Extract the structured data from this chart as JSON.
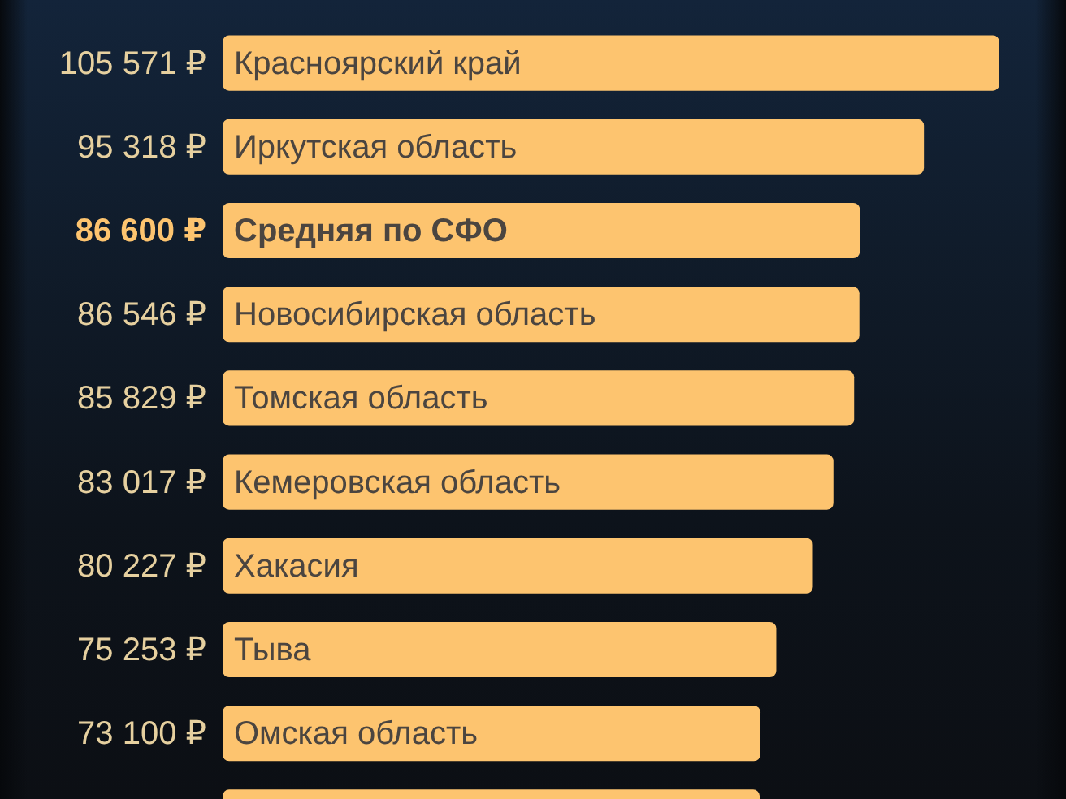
{
  "chart_data": {
    "type": "bar",
    "orientation": "horizontal",
    "categories": [
      "Красноярский край",
      "Иркутская область",
      "Средняя по СФО",
      "Новосибирская область",
      "Томская область",
      "Кемеровская область",
      "Хакасия",
      "Тыва",
      "Омская область",
      null
    ],
    "values": [
      105571,
      95318,
      86600,
      86546,
      85829,
      83017,
      80227,
      75253,
      73100,
      73000
    ],
    "value_labels": [
      "105 571 ₽",
      "95 318 ₽",
      "86 600 ₽",
      "86 546 ₽",
      "85 829 ₽",
      "83 017 ₽",
      "80 227 ₽",
      "75 253 ₽",
      "73 100 ₽",
      null
    ],
    "color": "#fdc46f",
    "tick_labels": "y"
  }
}
